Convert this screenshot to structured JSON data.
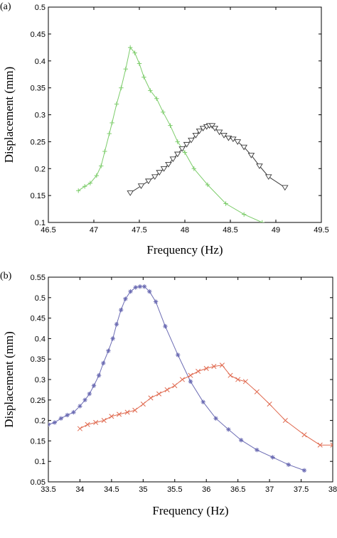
{
  "chart_data": [
    {
      "panel": "(a)",
      "type": "line",
      "xlabel": "Frequency (Hz)",
      "ylabel": "Displacement (mm)",
      "xlim": [
        46.5,
        49.5
      ],
      "ylim": [
        0.1,
        0.5
      ],
      "xticks": [
        "46.5",
        "47",
        "47.5",
        "48",
        "48.5",
        "49",
        "49.5"
      ],
      "yticks": [
        "0.1",
        "0.15",
        "0.2",
        "0.25",
        "0.3",
        "0.35",
        "0.4",
        "0.45",
        "0.5"
      ],
      "series": [
        {
          "color": "#7ccc6a",
          "marker": "plus",
          "x": [
            46.83,
            46.9,
            46.96,
            47.03,
            47.08,
            47.12,
            47.17,
            47.2,
            47.25,
            47.3,
            47.35,
            47.4,
            47.45,
            47.5,
            47.55,
            47.62,
            47.69,
            47.76,
            47.84,
            47.92,
            48.0,
            48.1,
            48.25,
            48.45,
            48.65,
            48.85,
            49.0
          ],
          "y": [
            0.159,
            0.167,
            0.173,
            0.187,
            0.205,
            0.232,
            0.265,
            0.285,
            0.32,
            0.35,
            0.385,
            0.425,
            0.415,
            0.395,
            0.37,
            0.345,
            0.33,
            0.305,
            0.28,
            0.25,
            0.23,
            0.2,
            0.17,
            0.135,
            0.115,
            0.1,
            0.09
          ]
        },
        {
          "color": "#3a3a3a",
          "marker": "triangle-down",
          "x": [
            47.4,
            47.52,
            47.6,
            47.67,
            47.72,
            47.77,
            47.82,
            47.87,
            47.92,
            47.97,
            48.02,
            48.07,
            48.12,
            48.16,
            48.2,
            48.24,
            48.27,
            48.3,
            48.33,
            48.38,
            48.43,
            48.48,
            48.53,
            48.58,
            48.65,
            48.73,
            48.82,
            48.92,
            49.1
          ],
          "y": [
            0.155,
            0.168,
            0.177,
            0.185,
            0.193,
            0.2,
            0.208,
            0.218,
            0.227,
            0.237,
            0.245,
            0.253,
            0.262,
            0.27,
            0.275,
            0.278,
            0.28,
            0.28,
            0.275,
            0.268,
            0.262,
            0.257,
            0.255,
            0.25,
            0.24,
            0.225,
            0.205,
            0.185,
            0.165
          ]
        }
      ]
    },
    {
      "panel": "(b)",
      "type": "line",
      "xlabel": "Frequency (Hz)",
      "ylabel": "Displacement (mm)",
      "xlim": [
        33.5,
        38
      ],
      "ylim": [
        0.05,
        0.55
      ],
      "xticks": [
        "33.5",
        "34",
        "34.5",
        "35",
        "35.5",
        "36",
        "36.5",
        "37",
        "37.5",
        "38"
      ],
      "yticks": [
        "0.05",
        "0.1",
        "0.15",
        "0.2",
        "0.25",
        "0.3",
        "0.35",
        "0.4",
        "0.45",
        "0.5",
        "0.55"
      ],
      "series": [
        {
          "color": "#6b6bb3",
          "marker": "asterisk",
          "x": [
            33.5,
            33.6,
            33.7,
            33.8,
            33.9,
            34.0,
            34.08,
            34.15,
            34.22,
            34.3,
            34.37,
            34.45,
            34.52,
            34.58,
            34.65,
            34.72,
            34.8,
            34.88,
            34.95,
            35.02,
            35.1,
            35.2,
            35.35,
            35.55,
            35.75,
            35.95,
            36.15,
            36.35,
            36.55,
            36.8,
            37.05,
            37.3,
            37.55
          ],
          "y": [
            0.19,
            0.195,
            0.205,
            0.213,
            0.22,
            0.235,
            0.25,
            0.265,
            0.285,
            0.31,
            0.34,
            0.37,
            0.4,
            0.435,
            0.47,
            0.497,
            0.515,
            0.525,
            0.527,
            0.527,
            0.515,
            0.49,
            0.43,
            0.36,
            0.295,
            0.245,
            0.205,
            0.178,
            0.152,
            0.128,
            0.11,
            0.092,
            0.078
          ]
        },
        {
          "color": "#e06a50",
          "marker": "x",
          "x": [
            34.0,
            34.12,
            34.25,
            34.38,
            34.5,
            34.62,
            34.75,
            34.87,
            35.0,
            35.12,
            35.25,
            35.38,
            35.5,
            35.62,
            35.75,
            35.87,
            36.0,
            36.12,
            36.25,
            36.38,
            36.5,
            36.62,
            36.8,
            37.0,
            37.25,
            37.55,
            37.8,
            38.0
          ],
          "y": [
            0.18,
            0.19,
            0.195,
            0.2,
            0.21,
            0.215,
            0.22,
            0.225,
            0.24,
            0.255,
            0.265,
            0.275,
            0.285,
            0.3,
            0.31,
            0.32,
            0.327,
            0.332,
            0.335,
            0.31,
            0.3,
            0.295,
            0.27,
            0.24,
            0.2,
            0.165,
            0.14,
            0.14
          ]
        }
      ]
    }
  ]
}
